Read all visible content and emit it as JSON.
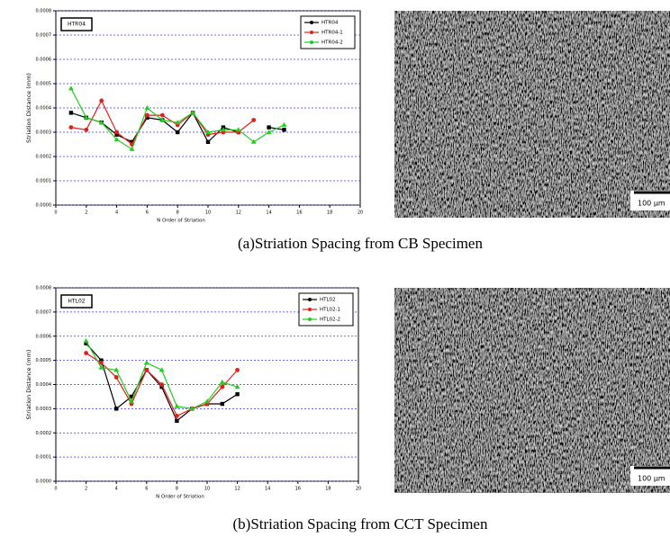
{
  "chart_data": [
    {
      "type": "line",
      "annotation": "HTR04",
      "ylabel": "Striation Distance (mm)",
      "xlabel": "N Order of Striation",
      "x": [
        1,
        2,
        3,
        4,
        5,
        6,
        7,
        8,
        9,
        10,
        11,
        12,
        13,
        14,
        15
      ],
      "series": [
        {
          "name": "HTR04",
          "color": "#000000",
          "values": [
            0.00038,
            0.00036,
            0.00034,
            0.00029,
            0.00026,
            0.00036,
            0.00035,
            0.0003,
            0.00038,
            0.00026,
            0.00032,
            0.0003,
            null,
            0.00032,
            0.00031
          ]
        },
        {
          "name": "HTR04-1",
          "color": "#e0201a",
          "values": [
            0.00032,
            0.00031,
            0.00043,
            0.0003,
            0.00025,
            0.00037,
            0.00037,
            0.00033,
            0.00038,
            0.00029,
            0.0003,
            0.0003,
            0.00035,
            null,
            null
          ]
        },
        {
          "name": "HTR04-2",
          "color": "#22cc22",
          "values": [
            0.00048,
            0.00036,
            0.00034,
            0.00027,
            0.00023,
            0.0004,
            0.00035,
            0.00034,
            0.00038,
            0.0003,
            0.00031,
            0.00031,
            0.00026,
            0.0003,
            0.00033
          ]
        }
      ],
      "xlim": [
        0,
        20
      ],
      "xticks": [
        0,
        2,
        4,
        6,
        8,
        10,
        12,
        14,
        16,
        18,
        20
      ],
      "ylim": [
        0,
        0.0008
      ],
      "yticks": [
        {
          "value": 0,
          "label": "0.0000"
        },
        0.0001,
        0.0002,
        0.0003,
        0.0004,
        0.0005,
        0.0006,
        0.0007,
        0.0008
      ],
      "grid": true,
      "legend": "upper right"
    },
    {
      "type": "line",
      "annotation": "HTL02",
      "ylabel": "Striation Distance (mm)",
      "xlabel": "N Order of Striation",
      "x": [
        2,
        3,
        4,
        5,
        6,
        7,
        8,
        9,
        10,
        11,
        12
      ],
      "series": [
        {
          "name": "HTL02",
          "color": "#000000",
          "values": [
            0.00057,
            0.0005,
            0.0003,
            0.00035,
            0.00046,
            0.00039,
            0.00025,
            0.0003,
            0.00032,
            0.00032,
            0.00036
          ]
        },
        {
          "name": "HTL02-1",
          "color": "#e0201a",
          "values": [
            0.00053,
            0.00049,
            0.00043,
            0.00032,
            0.00046,
            0.0004,
            0.00027,
            0.0003,
            0.00032,
            0.00039,
            0.00046
          ]
        },
        {
          "name": "HTL02-2",
          "color": "#22cc22",
          "values": [
            0.00058,
            0.00047,
            0.00046,
            0.00033,
            0.00049,
            0.00046,
            0.00031,
            0.0003,
            0.00033,
            0.00041,
            0.00039
          ]
        }
      ],
      "xlim": [
        0,
        20
      ],
      "xticks": [
        0,
        2,
        4,
        6,
        8,
        10,
        12,
        14,
        16,
        18,
        20
      ],
      "ylim": [
        0,
        0.0008
      ],
      "yticks": [
        {
          "value": 0,
          "label": "0.0000"
        },
        0.0001,
        0.0002,
        0.0003,
        0.0004,
        0.0005,
        0.0006,
        0.0007,
        0.0008
      ],
      "grid": true,
      "legend": "upper right"
    }
  ],
  "images": [
    {
      "scale_label": "100 µm"
    },
    {
      "scale_label": "100 µm"
    }
  ],
  "captions": [
    "(a)Striation Spacing from CB Specimen",
    "(b)Striation Spacing from CCT Specimen"
  ]
}
